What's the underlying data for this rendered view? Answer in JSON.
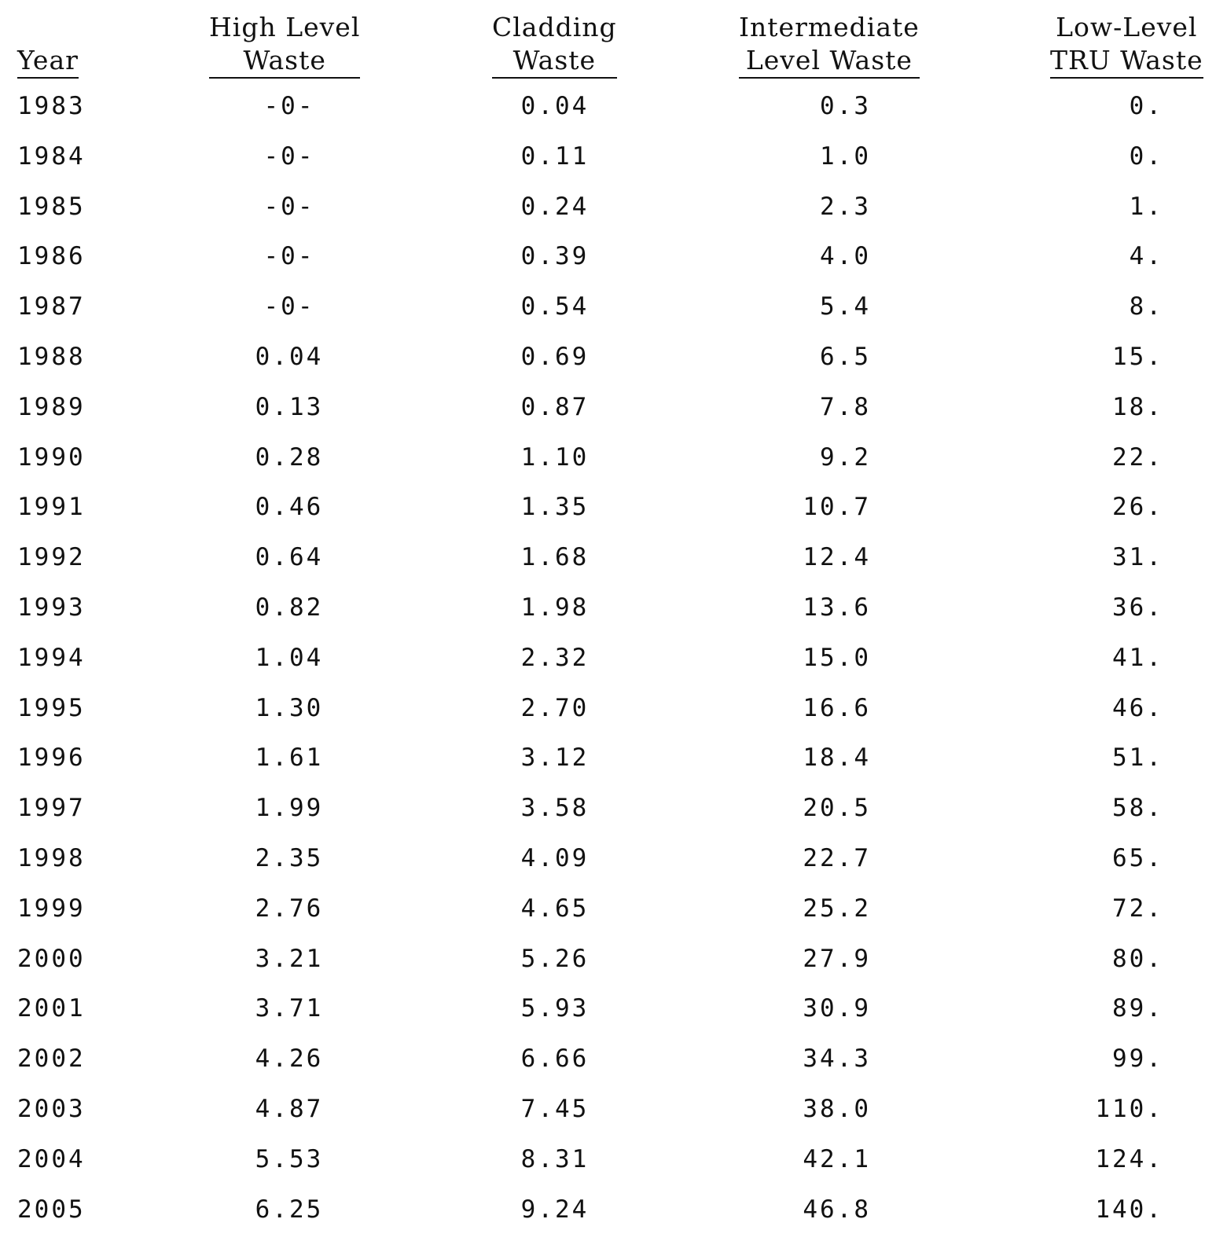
{
  "table": {
    "headers": {
      "year": "Year",
      "hlw_line1": "High Level",
      "hlw_line2": "Waste",
      "clad_line1": "Cladding",
      "clad_line2": "Waste",
      "ilw_line1": "Intermediate",
      "ilw_line2": "Level Waste",
      "tru_line1": "Low-Level",
      "tru_line2": "TRU Waste"
    },
    "rows": [
      {
        "year": "1983",
        "hlw": "-0-",
        "clad": "0.04",
        "ilw": "0.3",
        "tru": "0."
      },
      {
        "year": "1984",
        "hlw": "-0-",
        "clad": "0.11",
        "ilw": "1.0",
        "tru": "0."
      },
      {
        "year": "1985",
        "hlw": "-0-",
        "clad": "0.24",
        "ilw": "2.3",
        "tru": "1."
      },
      {
        "year": "1986",
        "hlw": "-0-",
        "clad": "0.39",
        "ilw": "4.0",
        "tru": "4."
      },
      {
        "year": "1987",
        "hlw": "-0-",
        "clad": "0.54",
        "ilw": "5.4",
        "tru": "8."
      },
      {
        "year": "1988",
        "hlw": "0.04",
        "clad": "0.69",
        "ilw": "6.5",
        "tru": "15."
      },
      {
        "year": "1989",
        "hlw": "0.13",
        "clad": "0.87",
        "ilw": "7.8",
        "tru": "18."
      },
      {
        "year": "1990",
        "hlw": "0.28",
        "clad": "1.10",
        "ilw": "9.2",
        "tru": "22."
      },
      {
        "year": "1991",
        "hlw": "0.46",
        "clad": "1.35",
        "ilw": "10.7",
        "tru": "26."
      },
      {
        "year": "1992",
        "hlw": "0.64",
        "clad": "1.68",
        "ilw": "12.4",
        "tru": "31."
      },
      {
        "year": "1993",
        "hlw": "0.82",
        "clad": "1.98",
        "ilw": "13.6",
        "tru": "36."
      },
      {
        "year": "1994",
        "hlw": "1.04",
        "clad": "2.32",
        "ilw": "15.0",
        "tru": "41."
      },
      {
        "year": "1995",
        "hlw": "1.30",
        "clad": "2.70",
        "ilw": "16.6",
        "tru": "46."
      },
      {
        "year": "1996",
        "hlw": "1.61",
        "clad": "3.12",
        "ilw": "18.4",
        "tru": "51."
      },
      {
        "year": "1997",
        "hlw": "1.99",
        "clad": "3.58",
        "ilw": "20.5",
        "tru": "58."
      },
      {
        "year": "1998",
        "hlw": "2.35",
        "clad": "4.09",
        "ilw": "22.7",
        "tru": "65."
      },
      {
        "year": "1999",
        "hlw": "2.76",
        "clad": "4.65",
        "ilw": "25.2",
        "tru": "72."
      },
      {
        "year": "2000",
        "hlw": "3.21",
        "clad": "5.26",
        "ilw": "27.9",
        "tru": "80."
      },
      {
        "year": "2001",
        "hlw": "3.71",
        "clad": "5.93",
        "ilw": "30.9",
        "tru": "89."
      },
      {
        "year": "2002",
        "hlw": "4.26",
        "clad": "6.66",
        "ilw": "34.3",
        "tru": "99."
      },
      {
        "year": "2003",
        "hlw": "4.87",
        "clad": "7.45",
        "ilw": "38.0",
        "tru": "110."
      },
      {
        "year": "2004",
        "hlw": "5.53",
        "clad": "8.31",
        "ilw": "42.1",
        "tru": "124."
      },
      {
        "year": "2005",
        "hlw": "6.25",
        "clad": "9.24",
        "ilw": "46.8",
        "tru": "140."
      }
    ]
  }
}
